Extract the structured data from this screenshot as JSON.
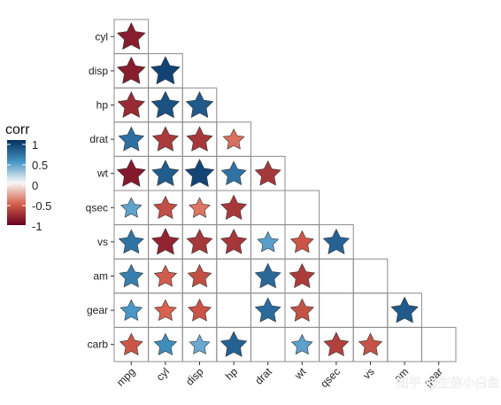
{
  "chart_data": {
    "type": "heatmap",
    "title": "",
    "xlabel": "",
    "ylabel": "",
    "shape": "star",
    "layout": "lower-triangle",
    "rows": [
      "cyl",
      "disp",
      "hp",
      "drat",
      "wt",
      "qsec",
      "vs",
      "am",
      "gear",
      "carb"
    ],
    "columns": [
      "mpg",
      "cyl",
      "disp",
      "hp",
      "drat",
      "wt",
      "qsec",
      "vs",
      "am",
      "gear"
    ],
    "values": [
      [
        -0.85,
        null,
        null,
        null,
        null,
        null,
        null,
        null,
        null,
        null
      ],
      [
        -0.85,
        0.9,
        null,
        null,
        null,
        null,
        null,
        null,
        null,
        null
      ],
      [
        -0.78,
        0.83,
        0.79,
        null,
        null,
        null,
        null,
        null,
        null,
        null
      ],
      [
        0.68,
        -0.7,
        -0.71,
        -0.45,
        null,
        null,
        null,
        null,
        null,
        null
      ],
      [
        -0.87,
        0.78,
        0.89,
        0.66,
        -0.71,
        null,
        null,
        null,
        null,
        null
      ],
      [
        0.42,
        -0.59,
        -0.43,
        -0.71,
        null,
        null,
        null,
        null,
        null,
        null
      ],
      [
        0.66,
        -0.81,
        -0.71,
        -0.72,
        0.44,
        -0.55,
        0.74,
        null,
        null,
        null
      ],
      [
        0.6,
        -0.52,
        -0.59,
        null,
        0.71,
        -0.69,
        null,
        null,
        null,
        null
      ],
      [
        0.48,
        -0.49,
        -0.56,
        null,
        0.7,
        -0.58,
        null,
        null,
        0.79,
        null
      ],
      [
        -0.55,
        0.53,
        0.39,
        0.75,
        null,
        0.43,
        -0.66,
        -0.57,
        null,
        null
      ]
    ],
    "legend": {
      "title": "corr",
      "ticks": [
        "1",
        "0.5",
        "0",
        "-0.5",
        "-1"
      ],
      "placement": "left",
      "colors": {
        "low": "#67001f",
        "mid_low": "#d6604d",
        "mid": "#f7f7f7",
        "mid_high": "#4393c3",
        "high": "#053061"
      }
    }
  },
  "watermark": "知乎 @生信小白鱼"
}
